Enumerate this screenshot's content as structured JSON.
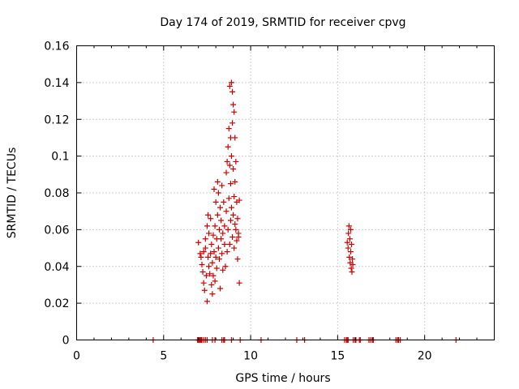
{
  "chart_data": {
    "type": "scatter",
    "title": "Day 174 of 2019, SRMTID for receiver cpvg",
    "xlabel": "GPS time / hours",
    "ylabel": "SRMTID / TECUs",
    "xlim": [
      0,
      24
    ],
    "ylim": [
      0,
      0.16
    ],
    "grid": true,
    "marker": "+",
    "color": "#cc0000",
    "x_ticks": [
      0,
      5,
      10,
      15,
      20
    ],
    "x_tick_labels": [
      "0",
      "5",
      "10",
      "15",
      "20"
    ],
    "y_ticks": [
      0,
      0.02,
      0.04,
      0.06,
      0.08,
      0.1,
      0.12,
      0.14,
      0.16
    ],
    "y_tick_labels": [
      "0",
      "0.02",
      "0.04",
      "0.06",
      "0.08",
      "0.1",
      "0.12",
      "0.14",
      "0.16"
    ],
    "series": [
      {
        "name": "SRMTID",
        "points": [
          [
            4.4,
            0
          ],
          [
            6.95,
            0
          ],
          [
            7.0,
            0
          ],
          [
            7.05,
            0
          ],
          [
            7.1,
            0
          ],
          [
            7.15,
            0
          ],
          [
            7.2,
            0
          ],
          [
            7.3,
            0
          ],
          [
            7.4,
            0
          ],
          [
            7.5,
            0
          ],
          [
            7.8,
            0
          ],
          [
            7.95,
            0
          ],
          [
            8.35,
            0
          ],
          [
            8.45,
            0
          ],
          [
            8.5,
            0
          ],
          [
            8.9,
            0
          ],
          [
            9.4,
            0
          ],
          [
            10.6,
            0
          ],
          [
            12.65,
            0
          ],
          [
            13.1,
            0
          ],
          [
            15.4,
            0
          ],
          [
            15.5,
            0
          ],
          [
            15.55,
            0
          ],
          [
            15.6,
            0
          ],
          [
            15.9,
            0
          ],
          [
            16.0,
            0
          ],
          [
            16.05,
            0
          ],
          [
            16.25,
            0
          ],
          [
            16.3,
            0
          ],
          [
            16.8,
            0
          ],
          [
            16.9,
            0
          ],
          [
            17.0,
            0
          ],
          [
            17.05,
            0
          ],
          [
            18.35,
            0
          ],
          [
            18.45,
            0
          ],
          [
            18.5,
            0
          ],
          [
            18.6,
            0
          ],
          [
            21.8,
            0
          ],
          [
            7.0,
            0.053
          ],
          [
            7.1,
            0.047
          ],
          [
            7.15,
            0.045
          ],
          [
            7.2,
            0.041
          ],
          [
            7.25,
            0.037
          ],
          [
            7.3,
            0.048
          ],
          [
            7.3,
            0.031
          ],
          [
            7.35,
            0.027
          ],
          [
            7.4,
            0.05
          ],
          [
            7.4,
            0.055
          ],
          [
            7.45,
            0.035
          ],
          [
            7.5,
            0.021
          ],
          [
            7.5,
            0.062
          ],
          [
            7.55,
            0.045
          ],
          [
            7.55,
            0.068
          ],
          [
            7.6,
            0.04
          ],
          [
            7.6,
            0.058
          ],
          [
            7.65,
            0.036
          ],
          [
            7.7,
            0.047
          ],
          [
            7.7,
            0.066
          ],
          [
            7.75,
            0.03
          ],
          [
            7.75,
            0.052
          ],
          [
            7.8,
            0.042
          ],
          [
            7.8,
            0.025
          ],
          [
            7.85,
            0.035
          ],
          [
            7.85,
            0.057
          ],
          [
            7.9,
            0.048
          ],
          [
            7.9,
            0.082
          ],
          [
            7.95,
            0.062
          ],
          [
            7.95,
            0.032
          ],
          [
            8.0,
            0.045
          ],
          [
            8.0,
            0.075
          ],
          [
            8.05,
            0.055
          ],
          [
            8.05,
            0.039
          ],
          [
            8.1,
            0.068
          ],
          [
            8.1,
            0.086
          ],
          [
            8.15,
            0.05
          ],
          [
            8.15,
            0.08
          ],
          [
            8.2,
            0.06
          ],
          [
            8.2,
            0.044
          ],
          [
            8.25,
            0.072
          ],
          [
            8.25,
            0.028
          ],
          [
            8.3,
            0.055
          ],
          [
            8.3,
            0.065
          ],
          [
            8.35,
            0.047
          ],
          [
            8.35,
            0.084
          ],
          [
            8.4,
            0.038
          ],
          [
            8.4,
            0.058
          ],
          [
            8.45,
            0.075
          ],
          [
            8.5,
            0.052
          ],
          [
            8.5,
            0.062
          ],
          [
            8.55,
            0.04
          ],
          [
            8.6,
            0.07
          ],
          [
            8.6,
            0.091
          ],
          [
            8.65,
            0.048
          ],
          [
            8.65,
            0.097
          ],
          [
            8.7,
            0.105
          ],
          [
            8.7,
            0.06
          ],
          [
            8.75,
            0.115
          ],
          [
            8.75,
            0.077
          ],
          [
            8.8,
            0.138
          ],
          [
            8.8,
            0.095
          ],
          [
            8.8,
            0.052
          ],
          [
            8.85,
            0.11
          ],
          [
            8.85,
            0.085
          ],
          [
            8.85,
            0.065
          ],
          [
            8.9,
            0.14
          ],
          [
            8.9,
            0.1
          ],
          [
            8.9,
            0.072
          ],
          [
            8.95,
            0.135
          ],
          [
            8.95,
            0.118
          ],
          [
            8.95,
            0.056
          ],
          [
            9.0,
            0.128
          ],
          [
            9.0,
            0.093
          ],
          [
            9.0,
            0.068
          ],
          [
            9.05,
            0.124
          ],
          [
            9.05,
            0.078
          ],
          [
            9.05,
            0.05
          ],
          [
            9.1,
            0.11
          ],
          [
            9.1,
            0.086
          ],
          [
            9.1,
            0.063
          ],
          [
            9.15,
            0.097
          ],
          [
            9.15,
            0.06
          ],
          [
            9.2,
            0.075
          ],
          [
            9.2,
            0.054
          ],
          [
            9.25,
            0.066
          ],
          [
            9.25,
            0.044
          ],
          [
            9.3,
            0.058
          ],
          [
            9.3,
            0.056
          ],
          [
            9.35,
            0.031
          ],
          [
            9.35,
            0.076
          ],
          [
            15.55,
            0.053
          ],
          [
            15.6,
            0.05
          ],
          [
            15.62,
            0.058
          ],
          [
            15.65,
            0.062
          ],
          [
            15.67,
            0.045
          ],
          [
            15.7,
            0.055
          ],
          [
            15.72,
            0.042
          ],
          [
            15.75,
            0.048
          ],
          [
            15.75,
            0.06
          ],
          [
            15.78,
            0.039
          ],
          [
            15.8,
            0.052
          ],
          [
            15.82,
            0.037
          ],
          [
            15.85,
            0.044
          ],
          [
            15.87,
            0.041
          ]
        ]
      }
    ]
  }
}
